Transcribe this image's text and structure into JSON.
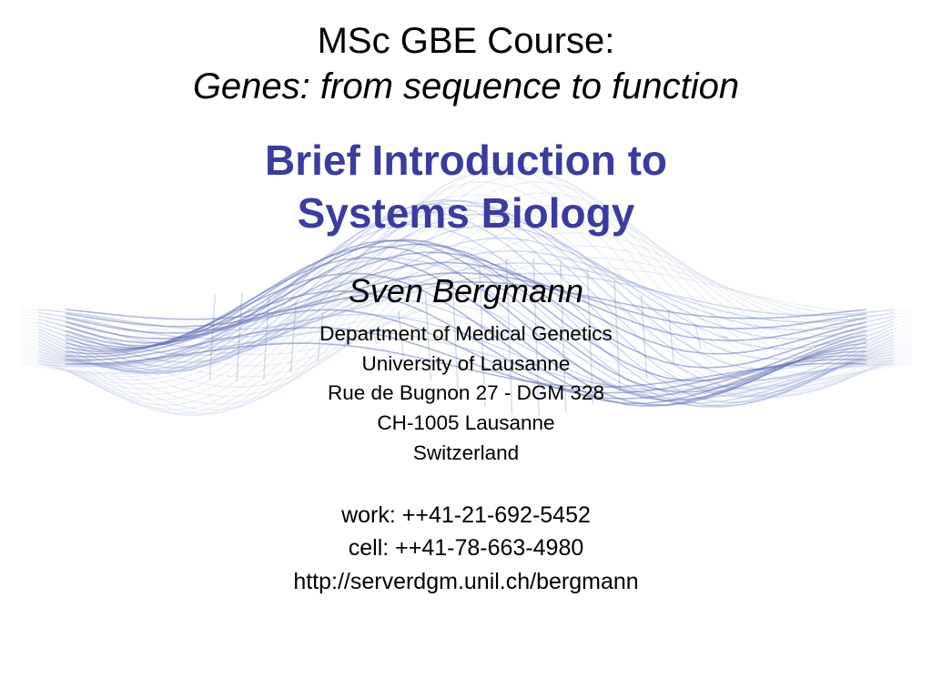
{
  "course": {
    "line1": "MSc GBE Course:",
    "line2": "Genes: from sequence to function"
  },
  "title": {
    "line1": "Brief Introduction to",
    "line2": "Systems Biology",
    "color": "#3c3c9c"
  },
  "author": "Sven Bergmann",
  "affiliation": {
    "dept": "Department of Medical Genetics",
    "univ": "University of Lausanne",
    "street": "Rue de Bugnon 27 - DGM 328",
    "postal": "CH-1005 Lausanne",
    "country": "Switzerland"
  },
  "contact": {
    "work": "work: ++41-21-692-5452",
    "cell": "cell: ++41-78-663-4980",
    "url": "http://serverdgm.unil.ch/bergmann"
  },
  "bg": {
    "stroke_soft": "#c5cde8",
    "stroke_mid": "#9aa8da",
    "stroke_dark": "#5f6fb5",
    "opacity_soft": 0.35,
    "opacity_mid": 0.45,
    "opacity_dark": 0.5
  }
}
